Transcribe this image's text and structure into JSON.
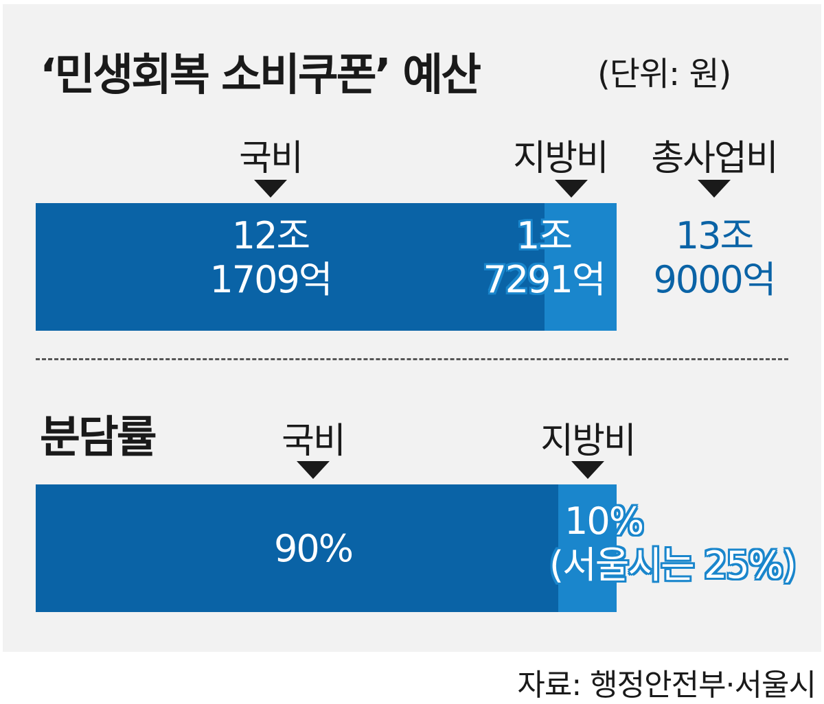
{
  "header": {
    "title": "‘민생회복 소비쿠폰’ 예산",
    "unit": "(단위: 원)"
  },
  "colors": {
    "national": "#0a63a6",
    "local": "#1a86cc",
    "text": "#1a1a1a",
    "background": "#f2f2f2"
  },
  "budget": {
    "national_label": "국비",
    "local_label": "지방비",
    "total_label": "총사업비",
    "national_value_line1": "12조",
    "national_value_line2": "1709억",
    "local_value_line1": "1조",
    "local_value_line2": "7291억",
    "total_value_line1": "13조",
    "total_value_line2": "9000억"
  },
  "share": {
    "section_title": "분담률",
    "national_label": "국비",
    "local_label": "지방비",
    "national_value": "90%",
    "local_value_line1": "10%",
    "local_value_line2": "(서울시는 25%)"
  },
  "source": "자료: 행정안전부·서울시",
  "chart_data": [
    {
      "type": "bar",
      "stacked": true,
      "orientation": "horizontal",
      "title": "‘민생회복 소비쿠폰’ 예산",
      "unit": "원",
      "series": [
        {
          "name": "국비",
          "values": [
            121709
          ],
          "unit_note": "억 원"
        },
        {
          "name": "지방비",
          "values": [
            17291
          ],
          "unit_note": "억 원"
        }
      ],
      "total": {
        "name": "총사업비",
        "value": 139000
      }
    },
    {
      "type": "bar",
      "stacked": true,
      "orientation": "horizontal",
      "title": "분담률",
      "series": [
        {
          "name": "국비",
          "values": [
            90
          ]
        },
        {
          "name": "지방비",
          "values": [
            10
          ]
        }
      ],
      "annotation": "(서울시는 25%)"
    }
  ]
}
